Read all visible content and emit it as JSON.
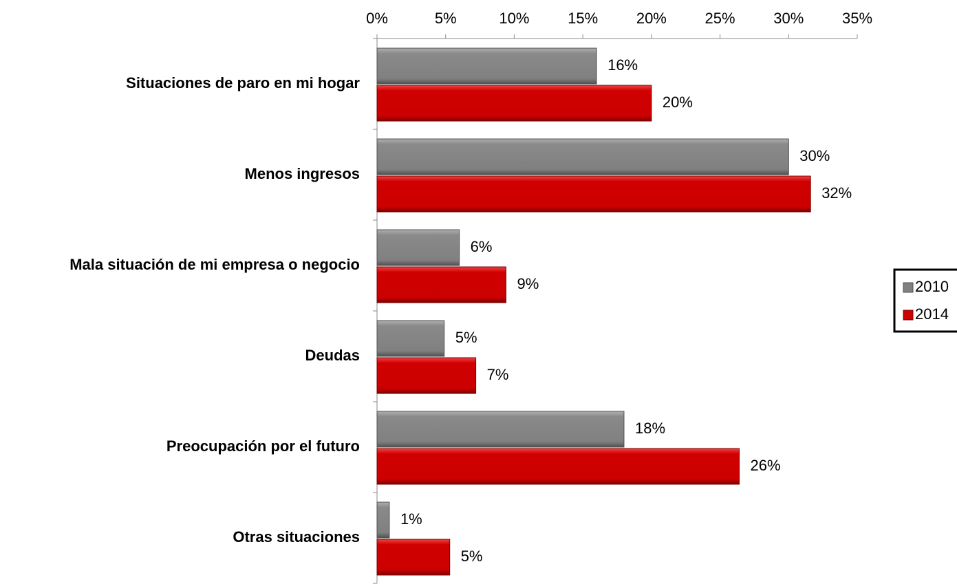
{
  "chart_data": {
    "type": "hbar",
    "categories": [
      "Situaciones de paro en mi hogar",
      "Menos ingresos",
      "Mala situación de mi empresa o negocio",
      "Deudas",
      "Preocupación por el futuro",
      "Otras situaciones"
    ],
    "series": [
      {
        "name": "2010",
        "color": "#808080",
        "values": [
          16,
          30,
          6,
          4.9,
          18,
          0.9
        ],
        "value_labels": [
          "16%",
          "30%",
          "6%",
          "5%",
          "18%",
          "1%"
        ]
      },
      {
        "name": "2014",
        "color": "#cc0000",
        "values": [
          20,
          31.6,
          9.4,
          7.2,
          26.4,
          5.3
        ],
        "value_labels": [
          "20%",
          "32%",
          "9%",
          "7%",
          "26%",
          "5%"
        ]
      }
    ],
    "xlim": [
      0,
      35
    ],
    "xticks": [
      {
        "value": 0,
        "label": "0%"
      },
      {
        "value": 5,
        "label": "5%"
      },
      {
        "value": 10,
        "label": "10%"
      },
      {
        "value": 15,
        "label": "15%"
      },
      {
        "value": 20,
        "label": "20%"
      },
      {
        "value": 25,
        "label": "25%"
      },
      {
        "value": 30,
        "label": "30%"
      },
      {
        "value": 35,
        "label": "35%"
      }
    ],
    "legend": "right"
  }
}
